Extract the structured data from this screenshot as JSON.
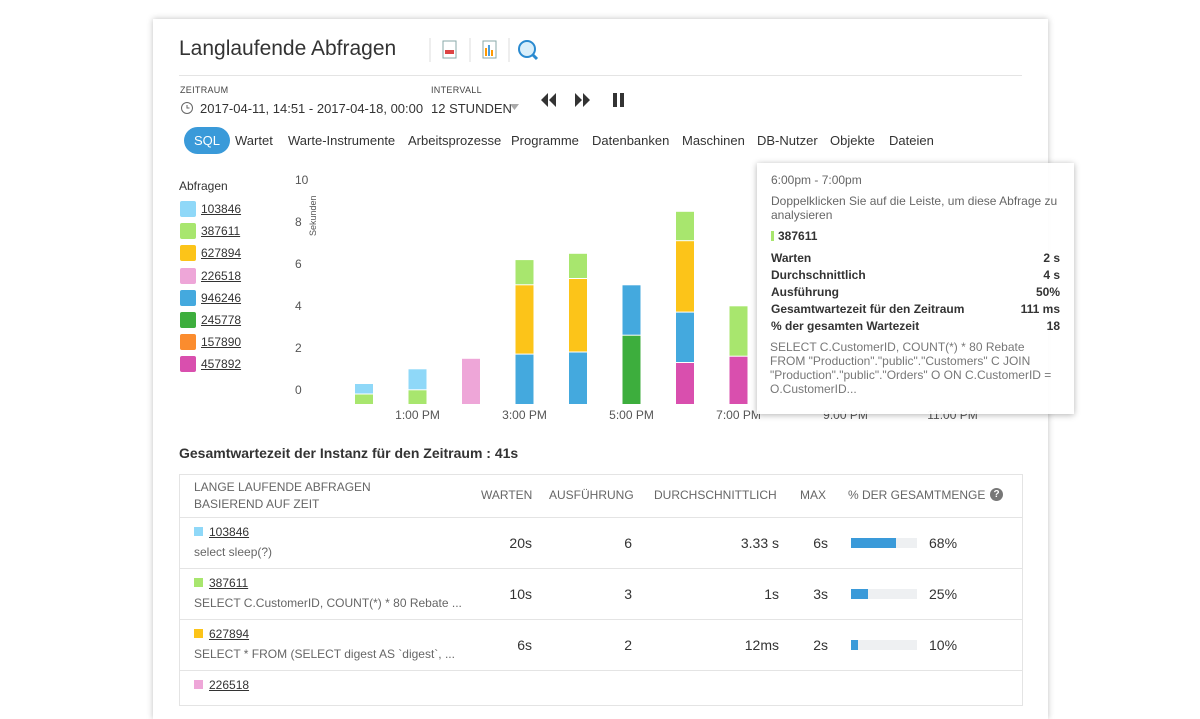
{
  "header": {
    "title": "Langlaufende Abfragen"
  },
  "filters": {
    "range_label": "ZEITRAUM",
    "range": "2017-04-11, 14:51 - 2017-04-18, 00:00",
    "interval_label": "INTERVALL",
    "interval": "12 STUNDEN"
  },
  "tabs": [
    "SQL",
    "Wartet",
    "Warte-Instrumente",
    "Arbeitsprozesse",
    "Programme",
    "Datenbanken",
    "Maschinen",
    "DB-Nutzer",
    "Objekte",
    "Dateien"
  ],
  "chart_data": {
    "type": "bar",
    "stacked": true,
    "legend_title": "Abfragen",
    "ylabel": "Sekunden",
    "categories": [
      null,
      "1:00 PM",
      null,
      "3:00 PM",
      null,
      "5:00 PM",
      null,
      "7:00 PM",
      null,
      "9:00 PM",
      null,
      "11:00 PM"
    ],
    "series": [
      {
        "name": "103846",
        "color": "#8fd8f8",
        "values": [
          0.5,
          1.0,
          null,
          null,
          null,
          null,
          null,
          null,
          null,
          null,
          null,
          null
        ]
      },
      {
        "name": "387611",
        "color": "#a8e66e",
        "values": [
          0.5,
          0.7,
          null,
          1.2,
          1.2,
          null,
          1.4,
          2.4,
          null,
          null,
          null,
          null
        ]
      },
      {
        "name": "627894",
        "color": "#fcc419",
        "values": [
          null,
          null,
          null,
          3.3,
          3.5,
          null,
          3.4,
          null,
          null,
          null,
          null,
          null
        ]
      },
      {
        "name": "226518",
        "color": "#eea6d8",
        "values": [
          null,
          null,
          2.2,
          null,
          null,
          null,
          null,
          null,
          null,
          null,
          null,
          null
        ]
      },
      {
        "name": "946246",
        "color": "#44a9de",
        "values": [
          null,
          null,
          null,
          2.4,
          2.5,
          2.4,
          2.4,
          null,
          null,
          null,
          null,
          null
        ]
      },
      {
        "name": "245778",
        "color": "#3dae3d",
        "values": [
          null,
          null,
          null,
          null,
          null,
          3.3,
          null,
          null,
          null,
          null,
          null,
          null
        ]
      },
      {
        "name": "157890",
        "color": "#fb8c2e",
        "values": [
          null,
          null,
          null,
          null,
          null,
          null,
          null,
          null,
          null,
          null,
          null,
          null
        ]
      },
      {
        "name": "457892",
        "color": "#d94fae",
        "values": [
          null,
          null,
          null,
          null,
          null,
          null,
          2.0,
          2.3,
          null,
          null,
          null,
          null
        ]
      }
    ],
    "ylim": [
      0,
      10
    ],
    "yticks": [
      0,
      2,
      4,
      6,
      8,
      10
    ]
  },
  "tooltip": {
    "time": "6:00pm - 7:00pm",
    "hint": "Doppelklicken Sie auf die Leiste, um diese Abfrage zu analysieren",
    "query": "387611",
    "color": "#a8e66e",
    "rows": [
      [
        "Warten",
        "2 s"
      ],
      [
        "Durchschnittlich",
        "4 s"
      ],
      [
        "Ausführung",
        "50%"
      ],
      [
        "Gesamtwartezeit für den Zeitraum",
        "111 ms"
      ],
      [
        "% der gesamten Wartezeit",
        "18"
      ]
    ],
    "sql": "SELECT C.CustomerID, COUNT(*) * 80 Rebate FROM \"Production\".\"public\".\"Customers\" C JOIN \"Production\".\"public\".\"Orders\" O ON C.CustomerID = O.CustomerID..."
  },
  "table": {
    "title": "Gesamtwartezeit der Instanz für den Zeitraum : 41s",
    "columns": [
      "LANGE LAUFENDE ABFRAGEN BASIEREND AUF ZEIT",
      "WARTEN",
      "AUSFÜHRUNG",
      "DURCHSCHNITTLICH",
      "MAX",
      "% DER GESAMTMENGE"
    ],
    "rows": [
      {
        "id": "103846",
        "color": "#8fd8f8",
        "sql": "select sleep(?)",
        "wait": "20s",
        "exec": 6,
        "avg": "3.33 s",
        "max": "6s",
        "pct": 68,
        "pct_label": "68%"
      },
      {
        "id": "387611",
        "color": "#a8e66e",
        "sql": "SELECT C.CustomerID, COUNT(*) * 80 Rebate ...",
        "wait": "10s",
        "exec": 3,
        "avg": "1s",
        "max": "3s",
        "pct": 25,
        "pct_label": "25%"
      },
      {
        "id": "627894",
        "color": "#fcc419",
        "sql": "SELECT * FROM (SELECT digest AS `digest`, ...",
        "wait": "6s",
        "exec": 2,
        "avg": "12ms",
        "max": "2s",
        "pct": 10,
        "pct_label": "10%"
      },
      {
        "id": "226518",
        "color": "#eea6d8"
      }
    ]
  }
}
